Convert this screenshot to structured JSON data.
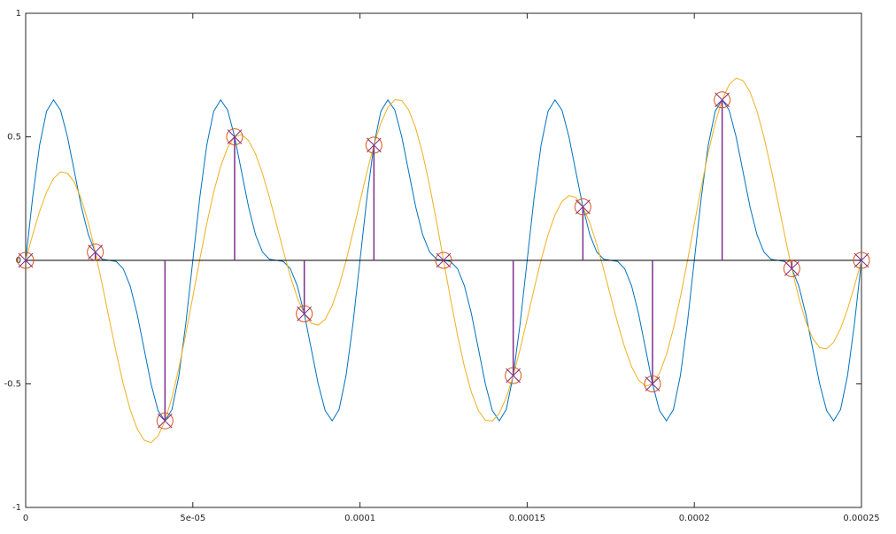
{
  "chart_data": {
    "type": "line",
    "xlim": [
      0,
      0.00025
    ],
    "ylim": [
      -1,
      1
    ],
    "xticks": [
      0,
      {
        "value": 5e-05,
        "label": "5e-05"
      },
      0.0001,
      0.00015,
      0.0002,
      0.00025
    ],
    "yticks": [
      -1,
      -0.5,
      0,
      0.5,
      1
    ],
    "grid": false,
    "x": [
      0,
      2.0833e-06,
      4.1667e-06,
      6.25e-06,
      8.3333e-06,
      1.04167e-05,
      1.25e-05,
      1.45833e-05,
      1.66667e-05,
      1.875e-05,
      2.08333e-05,
      2.29167e-05,
      2.5e-05,
      2.70833e-05,
      2.91667e-05,
      3.125e-05,
      3.33333e-05,
      3.54167e-05,
      3.75e-05,
      3.95833e-05,
      4.16667e-05,
      4.375e-05,
      4.58333e-05,
      4.79167e-05,
      5e-05,
      5.20833e-05,
      5.41667e-05,
      5.625e-05,
      5.83333e-05,
      6.04167e-05,
      6.25e-05,
      6.45833e-05,
      6.66667e-05,
      6.875e-05,
      7.08333e-05,
      7.29167e-05,
      7.5e-05,
      7.70833e-05,
      7.91667e-05,
      8.125e-05,
      8.33333e-05,
      8.54167e-05,
      8.75e-05,
      8.95833e-05,
      9.16667e-05,
      9.375e-05,
      9.58333e-05,
      9.79167e-05,
      0.0001,
      0.0001020833,
      0.0001041667,
      0.00010625,
      0.0001083333,
      0.0001104167,
      0.0001125,
      0.0001145833,
      0.0001166667,
      0.00011875,
      0.0001208333,
      0.0001229167,
      0.000125,
      0.0001270833,
      0.0001291667,
      0.00013125,
      0.0001333333,
      0.0001354167,
      0.0001375,
      0.0001395833,
      0.0001416667,
      0.00014375,
      0.0001458333,
      0.0001479167,
      0.00015,
      0.0001520833,
      0.0001541667,
      0.00015625,
      0.0001583333,
      0.0001604167,
      0.0001625,
      0.0001645833,
      0.0001666667,
      0.00016875,
      0.0001708333,
      0.0001729167,
      0.000175,
      0.0001770833,
      0.0001791667,
      0.00018125,
      0.0001833333,
      0.0001854167,
      0.0001875,
      0.0001895833,
      0.0001916667,
      0.00019375,
      0.0001958333,
      0.0001979167,
      0.0002,
      0.0002020833,
      0.0002041667,
      0.00020625,
      0.0002083333,
      0.0002104167,
      0.0002125,
      0.0002145833,
      0.0002166667,
      0.00021875,
      0.0002208333,
      0.0002229167,
      0.000225,
      0.0002270833,
      0.0002291667,
      0.00023125,
      0.0002333333,
      0.0002354167,
      0.0002375,
      0.0002395833,
      0.0002416667,
      0.00024375,
      0.0002458333,
      0.0002479167,
      0.00025
    ],
    "series": [
      {
        "color": "#0072bd",
        "values": [
          0,
          0.2544,
          0.4665,
          0.6036,
          0.6495,
          0.608,
          0.5,
          0.358,
          0.2165,
          0.1036,
          0.0335,
          0.0044,
          0,
          -0.0044,
          -0.0335,
          -0.1036,
          -0.2165,
          -0.358,
          -0.5,
          -0.608,
          -0.6495,
          -0.6036,
          -0.4665,
          -0.2544,
          0,
          0.2544,
          0.4665,
          0.6036,
          0.6495,
          0.608,
          0.5,
          0.358,
          0.2165,
          0.1036,
          0.0335,
          0.0044,
          0,
          -0.0044,
          -0.0335,
          -0.1036,
          -0.2165,
          -0.358,
          -0.5,
          -0.608,
          -0.6495,
          -0.6036,
          -0.4665,
          -0.2544,
          0,
          0.2544,
          0.4665,
          0.6036,
          0.6495,
          0.608,
          0.5,
          0.358,
          0.2165,
          0.1036,
          0.0335,
          0.0044,
          0,
          -0.0044,
          -0.0335,
          -0.1036,
          -0.2165,
          -0.358,
          -0.5,
          -0.608,
          -0.6495,
          -0.6036,
          -0.4665,
          -0.2544,
          0,
          0.2544,
          0.4665,
          0.6036,
          0.6495,
          0.608,
          0.5,
          0.358,
          0.2165,
          0.1036,
          0.0335,
          0.0044,
          0,
          -0.0044,
          -0.0335,
          -0.1036,
          -0.2165,
          -0.358,
          -0.5,
          -0.608,
          -0.6495,
          -0.6036,
          -0.4665,
          -0.2544,
          0,
          0.2544,
          0.4665,
          0.6036,
          0.6495,
          0.608,
          0.5,
          0.358,
          0.2165,
          0.1036,
          0.0335,
          0.0044,
          0,
          -0.0044,
          -0.0335,
          -0.1036,
          -0.2165,
          -0.358,
          -0.5,
          -0.608,
          -0.6495,
          -0.6036,
          -0.4665,
          -0.2544,
          0
        ]
      },
      {
        "color": "#edb120",
        "values": [
          0,
          0.1033,
          0.198,
          0.2763,
          0.3313,
          0.358,
          0.353,
          0.3157,
          0.2472,
          0.1513,
          0.0335,
          -0.099,
          -0.2378,
          -0.3739,
          -0.4986,
          -0.6036,
          -0.6816,
          -0.7275,
          -0.7378,
          -0.7114,
          -0.6495,
          -0.5559,
          -0.4358,
          -0.2967,
          -0.147,
          0.0044,
          0.1483,
          0.2763,
          0.381,
          0.4569,
          0.5,
          0.5091,
          0.485,
          0.4309,
          0.3517,
          0.2544,
          0.147,
          0.0379,
          -0.0642,
          -0.1513,
          -0.2165,
          -0.2546,
          -0.2622,
          -0.2385,
          -0.1844,
          -0.1036,
          -0.0014,
          0.1151,
          0.2378,
          0.3578,
          0.4665,
          0.5559,
          0.6188,
          0.6503,
          0.647,
          0.608,
          0.5347,
          0.4309,
          0.302,
          0.1555,
          0,
          -0.1555,
          -0.302,
          -0.4309,
          -0.5347,
          -0.608,
          -0.647,
          -0.6503,
          -0.6188,
          -0.5559,
          -0.4665,
          -0.3578,
          -0.2378,
          -0.1151,
          0.0014,
          0.1036,
          0.1844,
          0.2385,
          0.2622,
          0.2546,
          0.2165,
          0.1513,
          0.0642,
          -0.0379,
          -0.147,
          -0.2544,
          -0.3517,
          -0.4309,
          -0.485,
          -0.5091,
          -0.5,
          -0.4569,
          -0.381,
          -0.2763,
          -0.1483,
          -0.0044,
          0.147,
          0.2967,
          0.4358,
          0.5559,
          0.6495,
          0.7114,
          0.7378,
          0.7275,
          0.6816,
          0.6036,
          0.4986,
          0.3739,
          0.2378,
          0.099,
          -0.0335,
          -0.1513,
          -0.2472,
          -0.3157,
          -0.353,
          -0.358,
          -0.3313,
          -0.2763,
          -0.198,
          -0.1033,
          0
        ]
      },
      {
        "type": "stem",
        "color": "#7e2f8e",
        "marker_color": "#d95319",
        "x": [
          0,
          2.08333e-05,
          4.16667e-05,
          6.25e-05,
          8.33333e-05,
          0.0001041667,
          0.000125,
          0.0001458333,
          0.0001666667,
          0.0001875,
          0.0002083333,
          0.0002291667,
          0.00025
        ],
        "values": [
          0,
          0.0335,
          -0.6495,
          0.5,
          -0.2165,
          0.4665,
          0,
          -0.4665,
          0.2165,
          -0.5,
          0.6495,
          -0.0335,
          0
        ]
      }
    ]
  }
}
